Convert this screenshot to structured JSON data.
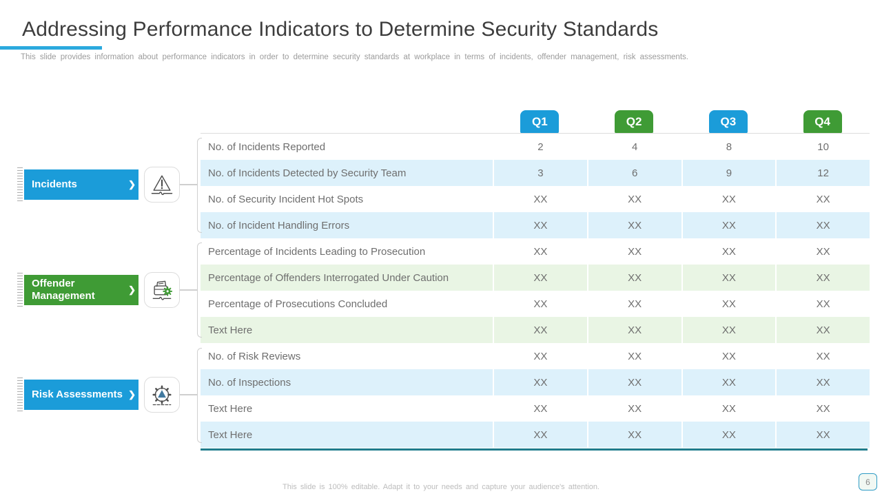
{
  "slide": {
    "title": "Addressing Performance Indicators to Determine Security Standards",
    "subtitle": "This slide provides information about performance indicators in order to determine security standards at workplace in terms of incidents, offender management, risk assessments.",
    "footer_note": "This slide is 100% editable. Adapt it to your needs and capture your audience's attention.",
    "page_number": "6"
  },
  "colors": {
    "blue": "#1B9CD9",
    "green": "#3F9B35",
    "row_blue": "#DDF1FB",
    "row_green": "#E9F5E4",
    "teal_bottom_line": "#1F7C8C",
    "title_accent": "#2BA9DE"
  },
  "groups": [
    {
      "label": "Incidents",
      "color": "blue",
      "icon": "warning-triangle-icon"
    },
    {
      "label": "Offender Management",
      "color": "green",
      "icon": "offender-folder-gear-icon"
    },
    {
      "label": "Risk Assessments",
      "color": "blue",
      "icon": "risk-gear-triangle-icon"
    }
  ],
  "table": {
    "quarters": [
      {
        "label": "Q1",
        "color": "blue"
      },
      {
        "label": "Q2",
        "color": "green"
      },
      {
        "label": "Q3",
        "color": "blue"
      },
      {
        "label": "Q4",
        "color": "green"
      }
    ],
    "rows": [
      {
        "group": 0,
        "label": "No. of Incidents Reported",
        "values": [
          "2",
          "4",
          "8",
          "10"
        ],
        "shade": ""
      },
      {
        "group": 0,
        "label": "No. of Incidents Detected by Security Team",
        "values": [
          "3",
          "6",
          "9",
          "12"
        ],
        "shade": "blue"
      },
      {
        "group": 0,
        "label": "No. of Security Incident Hot Spots",
        "values": [
          "XX",
          "XX",
          "XX",
          "XX"
        ],
        "shade": ""
      },
      {
        "group": 0,
        "label": "No. of Incident Handling Errors",
        "values": [
          "XX",
          "XX",
          "XX",
          "XX"
        ],
        "shade": "blue"
      },
      {
        "group": 1,
        "label": "Percentage of Incidents Leading to Prosecution",
        "values": [
          "XX",
          "XX",
          "XX",
          "XX"
        ],
        "shade": ""
      },
      {
        "group": 1,
        "label": "Percentage of Offenders Interrogated Under Caution",
        "values": [
          "XX",
          "XX",
          "XX",
          "XX"
        ],
        "shade": "green"
      },
      {
        "group": 1,
        "label": "Percentage of Prosecutions Concluded",
        "values": [
          "XX",
          "XX",
          "XX",
          "XX"
        ],
        "shade": ""
      },
      {
        "group": 1,
        "label": "Text Here",
        "values": [
          "XX",
          "XX",
          "XX",
          "XX"
        ],
        "shade": "green"
      },
      {
        "group": 2,
        "label": "No. of Risk Reviews",
        "values": [
          "XX",
          "XX",
          "XX",
          "XX"
        ],
        "shade": ""
      },
      {
        "group": 2,
        "label": "No. of Inspections",
        "values": [
          "XX",
          "XX",
          "XX",
          "XX"
        ],
        "shade": "blue"
      },
      {
        "group": 2,
        "label": "Text Here",
        "values": [
          "XX",
          "XX",
          "XX",
          "XX"
        ],
        "shade": ""
      },
      {
        "group": 2,
        "label": "Text Here",
        "values": [
          "XX",
          "XX",
          "XX",
          "XX"
        ],
        "shade": "blue"
      }
    ]
  }
}
